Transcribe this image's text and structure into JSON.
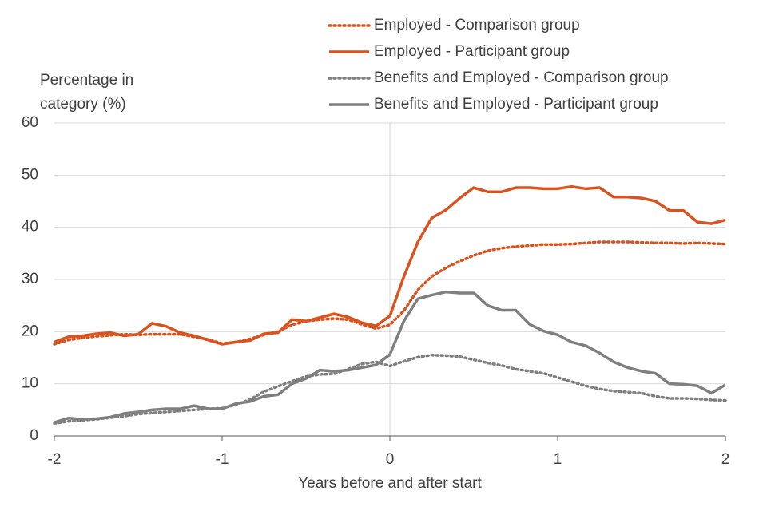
{
  "chart_data": {
    "type": "line",
    "ylabel": "Percentage in category (%)",
    "xlabel": "Years before and after start",
    "x": [
      -2,
      -1.917,
      -1.833,
      -1.75,
      -1.667,
      -1.583,
      -1.5,
      -1.417,
      -1.333,
      -1.25,
      -1.167,
      -1.083,
      -1,
      -0.917,
      -0.833,
      -0.75,
      -0.667,
      -0.583,
      -0.5,
      -0.417,
      -0.333,
      -0.25,
      -0.167,
      -0.083,
      0,
      0.083,
      0.167,
      0.25,
      0.333,
      0.417,
      0.5,
      0.583,
      0.667,
      0.75,
      0.833,
      0.917,
      1,
      1.083,
      1.167,
      1.25,
      1.333,
      1.417,
      1.5,
      1.583,
      1.667,
      1.75,
      1.833,
      1.917,
      2
    ],
    "series": [
      {
        "name": "Employed - Comparison group",
        "color": "#d9531e",
        "style": "dotted",
        "values": [
          17.6,
          18.4,
          18.8,
          19.1,
          19.3,
          19.5,
          19.4,
          19.5,
          19.5,
          19.5,
          19,
          18.5,
          17.7,
          18,
          18.6,
          19.4,
          20,
          21.3,
          22,
          22.3,
          22.5,
          22.3,
          21.4,
          20.6,
          21.3,
          24,
          28,
          30.6,
          32.2,
          33.5,
          34.6,
          35.5,
          36,
          36.3,
          36.5,
          36.7,
          36.7,
          36.8,
          37,
          37.2,
          37.2,
          37.2,
          37.1,
          37,
          37,
          36.9,
          37,
          36.9,
          36.8
        ]
      },
      {
        "name": "Employed - Participant group",
        "color": "#d9531e",
        "style": "solid",
        "values": [
          18,
          19,
          19.2,
          19.6,
          19.8,
          19.2,
          19.5,
          21.6,
          21,
          19.8,
          19.2,
          18.4,
          17.6,
          18,
          18.3,
          19.6,
          19.8,
          22.3,
          22,
          22.7,
          23.4,
          22.8,
          21.7,
          21.1,
          23,
          30.5,
          37.2,
          41.8,
          43.3,
          45.6,
          47.6,
          46.8,
          46.8,
          47.6,
          47.6,
          47.4,
          47.4,
          47.8,
          47.4,
          47.6,
          45.8,
          45.8,
          45.6,
          45,
          43.2,
          43.2,
          41,
          40.7,
          41.4
        ]
      },
      {
        "name": "Benefits and Employed - Comparison group",
        "color": "#7f7f7f",
        "style": "dotted",
        "values": [
          2.4,
          2.8,
          3,
          3.2,
          3.5,
          3.8,
          4.2,
          4.4,
          4.6,
          4.8,
          5,
          5.2,
          5.3,
          6,
          7,
          8.5,
          9.5,
          10.5,
          11.4,
          11.8,
          11.9,
          12.8,
          13.8,
          14.2,
          13.4,
          14.3,
          15.1,
          15.5,
          15.4,
          15.2,
          14.6,
          14,
          13.5,
          12.8,
          12.4,
          12,
          11.2,
          10.4,
          9.6,
          9,
          8.6,
          8.4,
          8.2,
          7.6,
          7.2,
          7.2,
          7.1,
          6.9,
          6.8
        ]
      },
      {
        "name": "Benefits and Employed - Participant group",
        "color": "#7f7f7f",
        "style": "solid",
        "values": [
          2.6,
          3.4,
          3.2,
          3.3,
          3.6,
          4.3,
          4.6,
          5,
          5.2,
          5.2,
          5.8,
          5.2,
          5.2,
          6.2,
          6.6,
          7.6,
          7.9,
          10,
          11,
          12.6,
          12.4,
          12.6,
          13.1,
          13.6,
          15.6,
          22,
          26.3,
          27,
          27.6,
          27.4,
          27.4,
          25,
          24.1,
          24.1,
          21.4,
          20.1,
          19.4,
          18,
          17.3,
          15.9,
          14.2,
          13.1,
          12.4,
          12,
          10,
          9.9,
          9.6,
          8.2,
          9.8
        ]
      }
    ],
    "xlim": [
      -2,
      2
    ],
    "xticks": [
      -2,
      -1,
      0,
      1,
      2
    ],
    "ylim": [
      0,
      60
    ],
    "yticks": [
      0,
      10,
      20,
      30,
      40,
      50,
      60
    ],
    "grid": true,
    "legend": "top-right"
  }
}
